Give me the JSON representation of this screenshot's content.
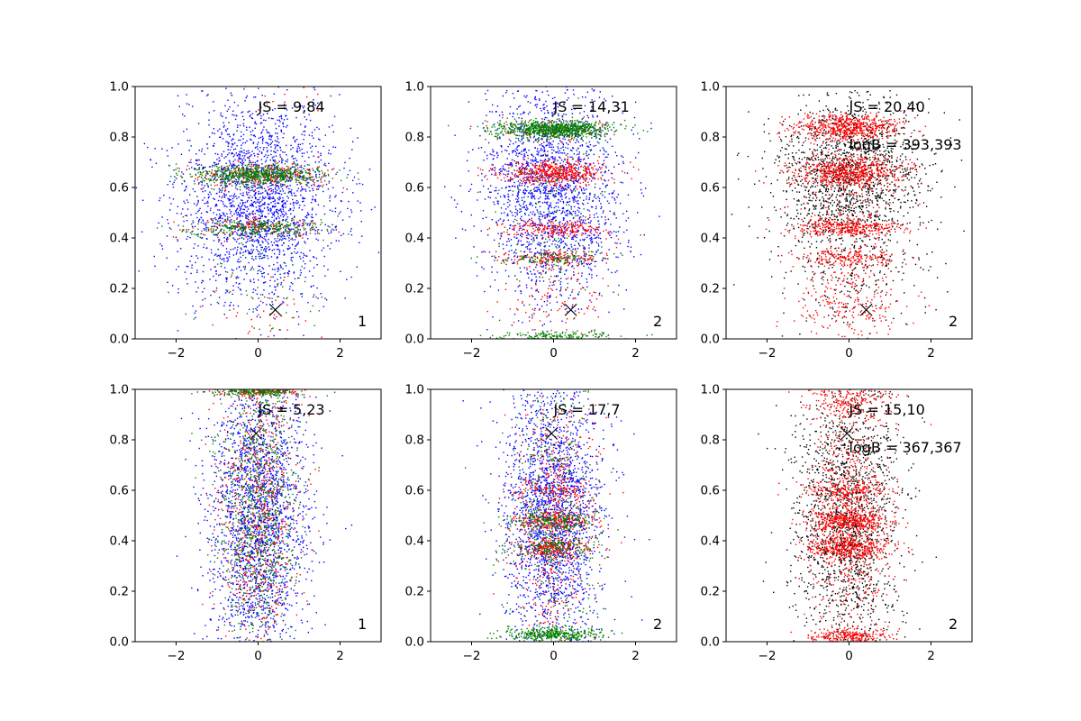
{
  "chart_data": [
    {
      "type": "scatter",
      "xlim": [
        -3,
        3
      ],
      "ylim": [
        0,
        1
      ],
      "xticks": [
        -2,
        0,
        2
      ],
      "yticks": [
        0.0,
        0.2,
        0.4,
        0.6,
        0.8,
        1.0
      ],
      "xtick_labels": [
        "−2",
        "0",
        "2"
      ],
      "ytick_labels": [
        "0.0",
        "0.2",
        "0.4",
        "0.6",
        "0.8",
        "1.0"
      ],
      "annotations": [
        "JS = 9,84"
      ],
      "corner_label": "1",
      "marker_x": [
        {
          "x": 0.42,
          "y": 0.115
        }
      ],
      "series": [
        {
          "color": "#0000ff",
          "count": 2200,
          "spread_x": 0.95,
          "y_bands": [
            {
              "y": 0.55,
              "sd": 0.2,
              "w": 1
            }
          ]
        },
        {
          "color": "#ff0000",
          "count": 500,
          "spread_x": 0.8,
          "y_bands": [
            {
              "y": 0.65,
              "sd": 0.025,
              "w": 0.55
            },
            {
              "y": 0.44,
              "sd": 0.02,
              "w": 0.3
            },
            {
              "y": 0.95,
              "sd": 0.04,
              "w": 0.05
            },
            {
              "y": 0.1,
              "sd": 0.08,
              "w": 0.1
            }
          ]
        },
        {
          "color": "#008000",
          "count": 1000,
          "spread_x": 0.8,
          "y_bands": [
            {
              "y": 0.65,
              "sd": 0.02,
              "w": 0.62
            },
            {
              "y": 0.44,
              "sd": 0.018,
              "w": 0.3
            },
            {
              "y": 0.2,
              "sd": 0.1,
              "w": 0.08
            }
          ]
        }
      ]
    },
    {
      "type": "scatter",
      "xlim": [
        -3,
        3
      ],
      "ylim": [
        0,
        1
      ],
      "xticks": [
        -2,
        0,
        2
      ],
      "yticks": [
        0.0,
        0.2,
        0.4,
        0.6,
        0.8,
        1.0
      ],
      "xtick_labels": [
        "−2",
        "0",
        "2"
      ],
      "ytick_labels": [
        "0.0",
        "0.2",
        "0.4",
        "0.6",
        "0.8",
        "1.0"
      ],
      "annotations": [
        "JS = 14,31"
      ],
      "corner_label": "2",
      "marker_x": [
        {
          "x": 0.42,
          "y": 0.115
        }
      ],
      "series": [
        {
          "color": "#0000ff",
          "count": 2000,
          "spread_x": 0.85,
          "y_bands": [
            {
              "y": 0.6,
              "sd": 0.22,
              "w": 1
            }
          ]
        },
        {
          "color": "#ff0000",
          "count": 1200,
          "spread_x": 0.65,
          "y_bands": [
            {
              "y": 0.66,
              "sd": 0.025,
              "w": 0.45
            },
            {
              "y": 0.44,
              "sd": 0.018,
              "w": 0.2
            },
            {
              "y": 0.32,
              "sd": 0.015,
              "w": 0.15
            },
            {
              "y": 0.83,
              "sd": 0.02,
              "w": 0.1
            },
            {
              "y": 0.15,
              "sd": 0.08,
              "w": 0.1
            }
          ]
        },
        {
          "color": "#008000",
          "count": 1300,
          "spread_x": 0.7,
          "y_bands": [
            {
              "y": 0.83,
              "sd": 0.018,
              "w": 0.65
            },
            {
              "y": 0.32,
              "sd": 0.015,
              "w": 0.1
            },
            {
              "y": 0.01,
              "sd": 0.01,
              "w": 0.15
            },
            {
              "y": 0.5,
              "sd": 0.2,
              "w": 0.1
            }
          ]
        }
      ]
    },
    {
      "type": "scatter",
      "xlim": [
        -3,
        3
      ],
      "ylim": [
        0,
        1
      ],
      "xticks": [
        -2,
        0,
        2
      ],
      "yticks": [
        0.0,
        0.2,
        0.4,
        0.6,
        0.8,
        1.0
      ],
      "xtick_labels": [
        "−2",
        "0",
        "2"
      ],
      "ytick_labels": [
        "0.0",
        "0.2",
        "0.4",
        "0.6",
        "0.8",
        "1.0"
      ],
      "annotations": [
        "JS = 20,40",
        "logB = 393,393"
      ],
      "corner_label": "2",
      "marker_x": [
        {
          "x": 0.42,
          "y": 0.115
        }
      ],
      "series": [
        {
          "color": "#000000",
          "count": 1800,
          "spread_x": 0.9,
          "y_bands": [
            {
              "y": 0.65,
              "sd": 0.15,
              "w": 0.85
            },
            {
              "y": 0.3,
              "sd": 0.15,
              "w": 0.15
            }
          ]
        },
        {
          "color": "#ff0000",
          "count": 2200,
          "spread_x": 0.65,
          "y_bands": [
            {
              "y": 0.84,
              "sd": 0.025,
              "w": 0.3
            },
            {
              "y": 0.66,
              "sd": 0.03,
              "w": 0.3
            },
            {
              "y": 0.44,
              "sd": 0.02,
              "w": 0.15
            },
            {
              "y": 0.32,
              "sd": 0.02,
              "w": 0.1
            },
            {
              "y": 0.15,
              "sd": 0.08,
              "w": 0.1
            },
            {
              "y": 0.55,
              "sd": 0.1,
              "w": 0.05
            }
          ]
        }
      ]
    },
    {
      "type": "scatter",
      "xlim": [
        -3,
        3
      ],
      "ylim": [
        0,
        1
      ],
      "xticks": [
        -2,
        0,
        2
      ],
      "yticks": [
        0.0,
        0.2,
        0.4,
        0.6,
        0.8,
        1.0
      ],
      "xtick_labels": [
        "−2",
        "0",
        "2"
      ],
      "ytick_labels": [
        "0.0",
        "0.2",
        "0.4",
        "0.6",
        "0.8",
        "1.0"
      ],
      "annotations": [
        "JS = 5,23"
      ],
      "corner_label": "1",
      "marker_x": [
        {
          "x": -0.05,
          "y": 0.825
        }
      ],
      "series": [
        {
          "color": "#0000ff",
          "count": 2200,
          "spread_x": 0.6,
          "y_bands": [
            {
              "y": 0.5,
              "sd": 0.28,
              "w": 1
            }
          ]
        },
        {
          "color": "#ff0000",
          "count": 900,
          "spread_x": 0.5,
          "y_bands": [
            {
              "y": 0.5,
              "sd": 0.28,
              "w": 0.8
            },
            {
              "y": 0.99,
              "sd": 0.01,
              "w": 0.2
            }
          ]
        },
        {
          "color": "#008000",
          "count": 1100,
          "spread_x": 0.5,
          "y_bands": [
            {
              "y": 0.5,
              "sd": 0.28,
              "w": 0.8
            },
            {
              "y": 0.99,
              "sd": 0.01,
              "w": 0.2
            }
          ]
        }
      ]
    },
    {
      "type": "scatter",
      "xlim": [
        -3,
        3
      ],
      "ylim": [
        0,
        1
      ],
      "xticks": [
        -2,
        0,
        2
      ],
      "yticks": [
        0.0,
        0.2,
        0.4,
        0.6,
        0.8,
        1.0
      ],
      "xtick_labels": [
        "−2",
        "0",
        "2"
      ],
      "ytick_labels": [
        "0.0",
        "0.2",
        "0.4",
        "0.6",
        "0.8",
        "1.0"
      ],
      "annotations": [
        "JS = 17,7"
      ],
      "corner_label": "2",
      "marker_x": [
        {
          "x": -0.05,
          "y": 0.825
        }
      ],
      "series": [
        {
          "color": "#0000ff",
          "count": 2200,
          "spread_x": 0.6,
          "y_bands": [
            {
              "y": 0.5,
              "sd": 0.28,
              "w": 1
            }
          ]
        },
        {
          "color": "#ff0000",
          "count": 1100,
          "spread_x": 0.5,
          "y_bands": [
            {
              "y": 0.48,
              "sd": 0.02,
              "w": 0.2
            },
            {
              "y": 0.37,
              "sd": 0.02,
              "w": 0.2
            },
            {
              "y": 0.6,
              "sd": 0.02,
              "w": 0.1
            },
            {
              "y": 0.5,
              "sd": 0.28,
              "w": 0.5
            }
          ]
        },
        {
          "color": "#008000",
          "count": 1100,
          "spread_x": 0.55,
          "y_bands": [
            {
              "y": 0.03,
              "sd": 0.015,
              "w": 0.35
            },
            {
              "y": 0.48,
              "sd": 0.02,
              "w": 0.15
            },
            {
              "y": 0.37,
              "sd": 0.02,
              "w": 0.15
            },
            {
              "y": 0.5,
              "sd": 0.28,
              "w": 0.35
            }
          ]
        }
      ]
    },
    {
      "type": "scatter",
      "xlim": [
        -3,
        3
      ],
      "ylim": [
        0,
        1
      ],
      "xticks": [
        -2,
        0,
        2
      ],
      "yticks": [
        0.0,
        0.2,
        0.4,
        0.6,
        0.8,
        1.0
      ],
      "xtick_labels": [
        "−2",
        "0",
        "2"
      ],
      "ytick_labels": [
        "0.0",
        "0.2",
        "0.4",
        "0.6",
        "0.8",
        "1.0"
      ],
      "annotations": [
        "JS = 15,10",
        "logB = 367,367"
      ],
      "corner_label": "2",
      "marker_x": [
        {
          "x": -0.05,
          "y": 0.825
        }
      ],
      "series": [
        {
          "color": "#000000",
          "count": 1700,
          "spread_x": 0.65,
          "y_bands": [
            {
              "y": 0.5,
              "sd": 0.28,
              "w": 1
            }
          ]
        },
        {
          "color": "#ff0000",
          "count": 2200,
          "spread_x": 0.5,
          "y_bands": [
            {
              "y": 0.48,
              "sd": 0.025,
              "w": 0.2
            },
            {
              "y": 0.37,
              "sd": 0.025,
              "w": 0.2
            },
            {
              "y": 0.6,
              "sd": 0.02,
              "w": 0.08
            },
            {
              "y": 0.02,
              "sd": 0.015,
              "w": 0.12
            },
            {
              "y": 0.95,
              "sd": 0.04,
              "w": 0.1
            },
            {
              "y": 0.5,
              "sd": 0.28,
              "w": 0.3
            }
          ]
        }
      ]
    }
  ]
}
